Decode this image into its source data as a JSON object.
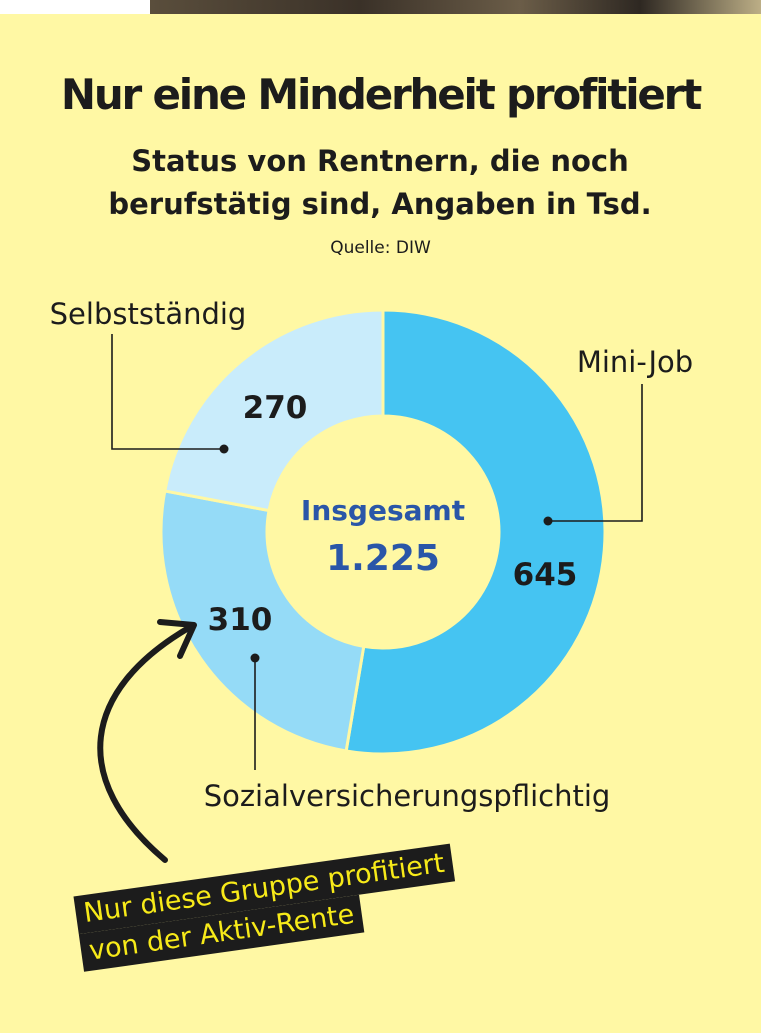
{
  "title": "Nur eine Minderheit profitiert",
  "subtitle": "Status von Rentnern, die noch berufstätig sind, Angaben in Tsd.",
  "source": "Quelle: DIW",
  "callout": {
    "line1": "Nur diese Gruppe profitiert",
    "line2": "von der Aktiv-Rente"
  },
  "chart_data": {
    "type": "pie",
    "title": "Nur eine Minderheit profitiert",
    "subtitle": "Status von Rentnern, die noch berufstätig sind, Angaben in Tsd.",
    "center_label": "Insgesamt",
    "total": "1.225",
    "categories": [
      "Mini-Job",
      "Sozialversicherungspflichtig",
      "Selbstständig"
    ],
    "values": [
      645,
      310,
      270
    ],
    "value_labels": [
      "645",
      "310",
      "270"
    ],
    "colors": [
      "#45c4f2",
      "#95dbf7",
      "#c9ecfb"
    ]
  }
}
